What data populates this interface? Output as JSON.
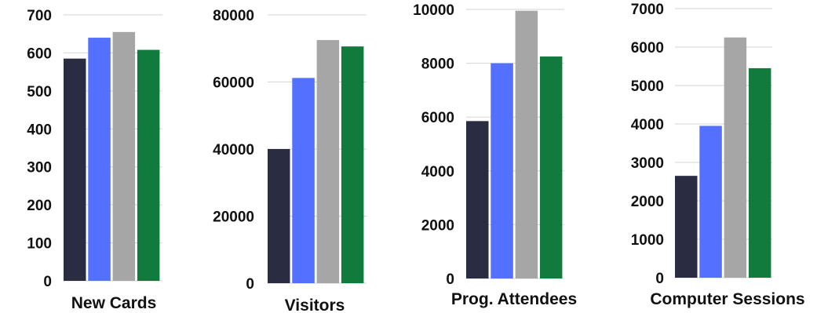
{
  "colors": [
    "#2a2d42",
    "#5470ff",
    "#a6a6a6",
    "#117a3d"
  ],
  "chart_data": [
    {
      "type": "bar",
      "title": "",
      "xlabel": "New Cards",
      "ylabel": "",
      "ylim": [
        0,
        700
      ],
      "yticks": [
        "0",
        "100",
        "200",
        "300",
        "400",
        "500",
        "600",
        "700"
      ],
      "grid": true,
      "values": [
        585,
        640,
        655,
        608
      ]
    },
    {
      "type": "bar",
      "title": "",
      "xlabel": "Visitors",
      "ylabel": "",
      "ylim": [
        0,
        80000
      ],
      "yticks": [
        "0",
        "20000",
        "40000",
        "60000",
        "80000"
      ],
      "grid": true,
      "values": [
        40000,
        61200,
        72500,
        70600
      ]
    },
    {
      "type": "bar",
      "title": "",
      "xlabel": "Prog. Attendees",
      "ylabel": "",
      "ylim": [
        0,
        10000
      ],
      "yticks": [
        "0",
        "2000",
        "4000",
        "6000",
        "8000",
        "10000"
      ],
      "grid": true,
      "values": [
        5850,
        8000,
        9950,
        8250
      ]
    },
    {
      "type": "bar",
      "title": "",
      "xlabel": "Computer Sessions",
      "ylabel": "",
      "ylim": [
        0,
        7000
      ],
      "yticks": [
        "0",
        "1000",
        "2000",
        "3000",
        "4000",
        "5000",
        "6000",
        "7000"
      ],
      "grid": true,
      "values": [
        2650,
        3950,
        6250,
        5450
      ]
    }
  ]
}
